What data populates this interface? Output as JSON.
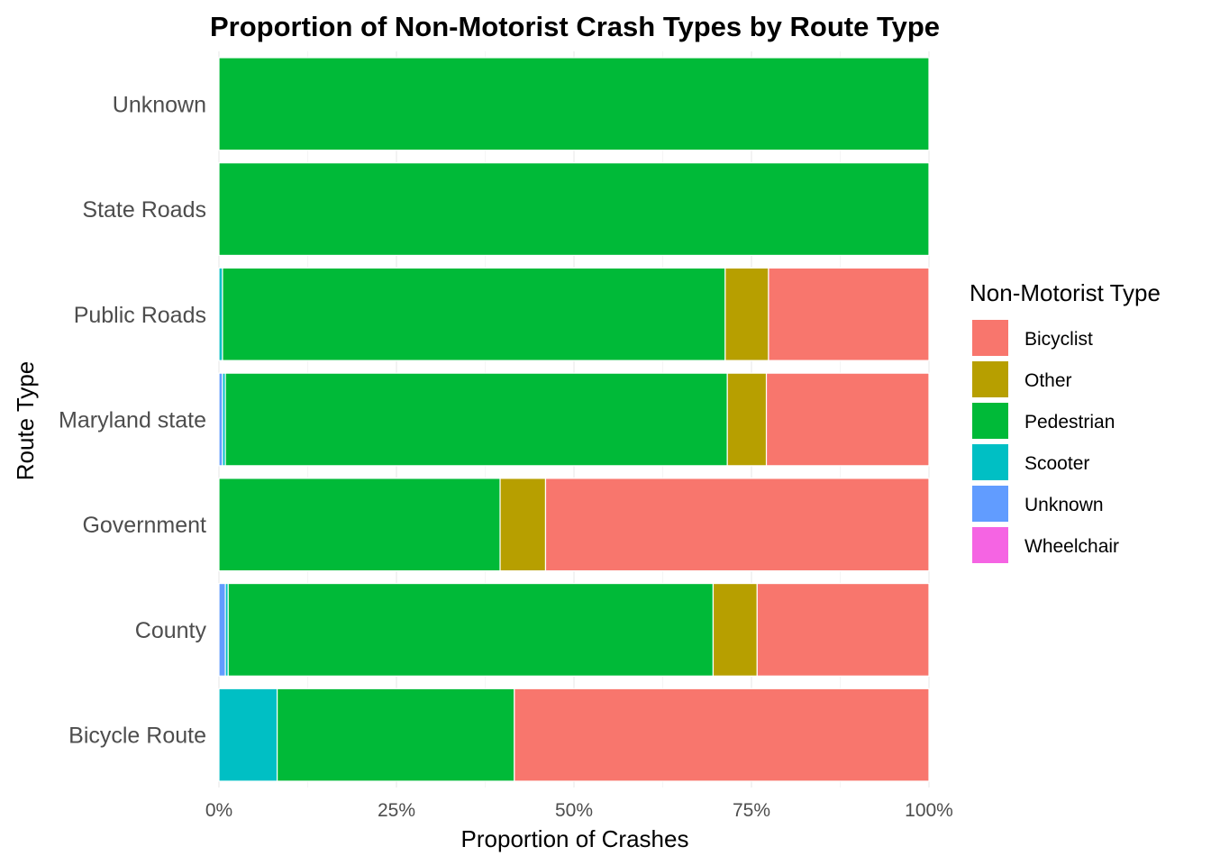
{
  "chart_data": {
    "type": "bar",
    "orientation": "horizontal",
    "stacked": true,
    "normalized": true,
    "title": "Proportion of Non-Motorist Crash Types by Route Type",
    "xlabel": "Proportion of Crashes",
    "ylabel": "Route Type",
    "xlim": [
      0,
      1
    ],
    "x_ticks": [
      0,
      0.25,
      0.5,
      0.75,
      1.0
    ],
    "x_tick_labels": [
      "0%",
      "25%",
      "50%",
      "75%",
      "100%"
    ],
    "grid": true,
    "legend_title": "Non-Motorist Type",
    "legend_position": "right",
    "categories": [
      "Unknown",
      "State Roads",
      "Public Roads",
      "Maryland state",
      "Government",
      "County",
      "Bicycle Route"
    ],
    "stack_order": [
      "Wheelchair",
      "Unknown",
      "Scooter",
      "Pedestrian",
      "Other",
      "Bicyclist"
    ],
    "series": [
      {
        "name": "Bicyclist",
        "color": "#F8766D",
        "values": [
          0,
          0,
          0.226,
          0.229,
          0.54,
          0.242,
          0.584
        ]
      },
      {
        "name": "Other",
        "color": "#B79F00",
        "values": [
          0,
          0,
          0.061,
          0.055,
          0.064,
          0.062,
          0
        ]
      },
      {
        "name": "Pedestrian",
        "color": "#00BA38",
        "values": [
          1.0,
          1.0,
          0.708,
          0.707,
          0.396,
          0.683,
          0.334
        ]
      },
      {
        "name": "Scooter",
        "color": "#00BFC4",
        "values": [
          0,
          0,
          0.005,
          0.004,
          0,
          0.004,
          0.082
        ]
      },
      {
        "name": "Unknown",
        "color": "#619CFF",
        "values": [
          0,
          0,
          0,
          0.005,
          0,
          0.009,
          0
        ]
      },
      {
        "name": "Wheelchair",
        "color": "#F564E3",
        "values": [
          0,
          0,
          0,
          0,
          0,
          0,
          0
        ]
      }
    ]
  }
}
